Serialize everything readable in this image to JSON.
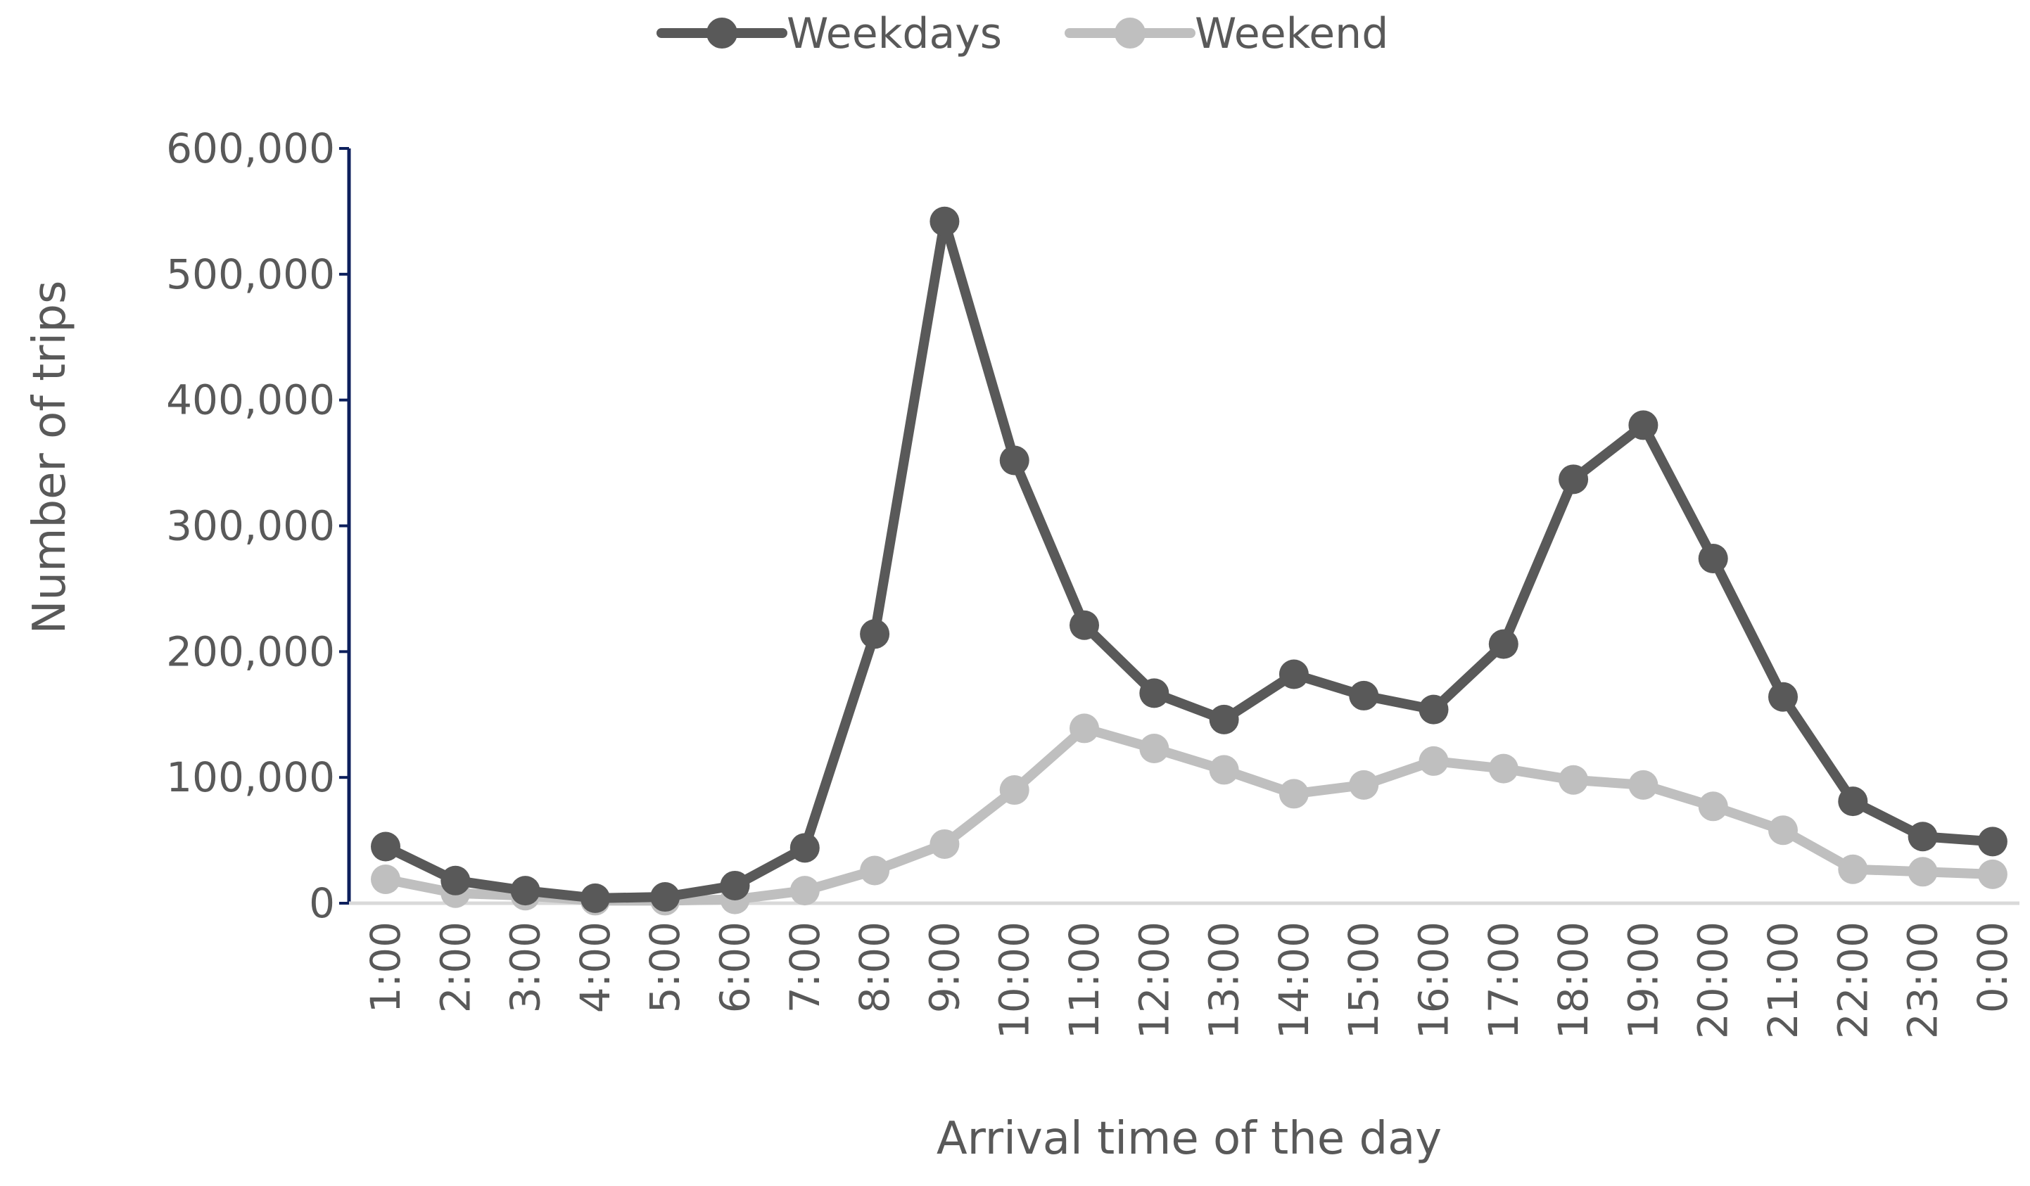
{
  "chart_data": {
    "type": "line",
    "title": "",
    "xlabel": "Arrival time of the day",
    "ylabel": "Number of trips",
    "ylim": [
      0,
      600000
    ],
    "yticks": [
      "0",
      "100,000",
      "200,000",
      "300,000",
      "400,000",
      "500,000",
      "600,000"
    ],
    "ytick_values": [
      0,
      100000,
      200000,
      300000,
      400000,
      500000,
      600000
    ],
    "categories": [
      "1:00",
      "2:00",
      "3:00",
      "4:00",
      "5:00",
      "6:00",
      "7:00",
      "8:00",
      "9:00",
      "10:00",
      "11:00",
      "12:00",
      "13:00",
      "14:00",
      "15:00",
      "16:00",
      "17:00",
      "18:00",
      "19:00",
      "20:00",
      "21:00",
      "22:00",
      "23:00",
      "0:00"
    ],
    "legend_position": "top-center",
    "grid": false,
    "series": [
      {
        "name": "Weekdays",
        "color": "#595959",
        "values": [
          45000,
          18000,
          10000,
          4000,
          5000,
          14000,
          44000,
          214000,
          542000,
          352000,
          221000,
          167000,
          146000,
          182000,
          165000,
          154000,
          206000,
          337000,
          380000,
          274000,
          164000,
          81000,
          53000,
          49000
        ]
      },
      {
        "name": "Weekend",
        "color": "#bfbfbf",
        "values": [
          19000,
          8000,
          6000,
          2000,
          2000,
          3000,
          10000,
          26000,
          47000,
          90000,
          139000,
          123000,
          106000,
          87000,
          94000,
          113000,
          107000,
          98000,
          94000,
          77000,
          58000,
          27000,
          25000,
          23000
        ]
      }
    ]
  }
}
